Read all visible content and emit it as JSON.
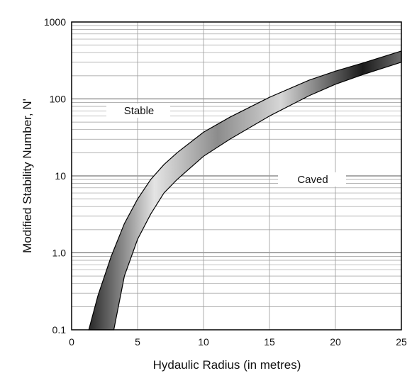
{
  "chart_data": {
    "type": "area",
    "title": "",
    "xlabel": "Hydaulic Radius (in metres)",
    "ylabel": "Modified Stability Number, N'",
    "xlim": [
      0,
      25
    ],
    "ylim": [
      0.1,
      1000
    ],
    "yscale": "log",
    "grid": true,
    "x_ticks": [
      "0",
      "5",
      "10",
      "15",
      "20",
      "25"
    ],
    "y_ticks": [
      "0.1",
      "1.0",
      "10",
      "100",
      "1000"
    ],
    "series": [
      {
        "x": [
          1.3,
          2,
          3,
          4,
          5,
          6,
          7,
          8,
          10,
          12,
          15,
          18,
          20,
          22,
          25
        ],
        "values": [
          0.1,
          0.28,
          0.9,
          2.4,
          5,
          9,
          14,
          20,
          37,
          58,
          105,
          175,
          230,
          290,
          420
        ]
      },
      {
        "x": [
          3.2,
          4,
          5,
          6,
          7,
          8,
          10,
          12,
          15,
          18,
          20,
          22,
          25
        ],
        "values": [
          0.1,
          0.5,
          1.5,
          3.2,
          6,
          9,
          18,
          30,
          60,
          110,
          155,
          205,
          300
        ]
      }
    ],
    "annotations": [
      "Stable",
      "Caved"
    ]
  }
}
